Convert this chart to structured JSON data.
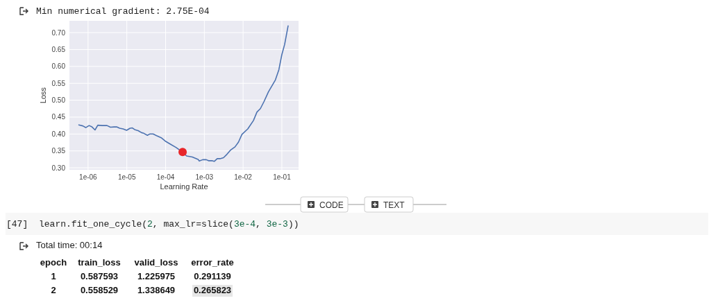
{
  "chart_data": [
    {
      "type": "line",
      "title": "Min numerical gradient: 2.75E-04",
      "xlabel": "Learning Rate",
      "ylabel": "Loss",
      "log": "x",
      "grid": true,
      "xlim": [
        3.3e-07,
        0.27
      ],
      "ylim": [
        0.294,
        0.735
      ],
      "xticks": [
        {
          "value": 1e-06,
          "label": "1e-06"
        },
        {
          "value": 1e-05,
          "label": "1e-05"
        },
        {
          "value": 0.0001,
          "label": "1e-04"
        },
        {
          "value": 0.001,
          "label": "1e-03"
        },
        {
          "value": 0.01,
          "label": "1e-02"
        },
        {
          "value": 0.1,
          "label": "1e-01"
        }
      ],
      "yticks": [
        {
          "value": 0.3,
          "label": "0.30"
        },
        {
          "value": 0.35,
          "label": "0.35"
        },
        {
          "value": 0.4,
          "label": "0.40"
        },
        {
          "value": 0.45,
          "label": "0.45"
        },
        {
          "value": 0.5,
          "label": "0.50"
        },
        {
          "value": 0.55,
          "label": "0.55"
        },
        {
          "value": 0.6,
          "label": "0.60"
        },
        {
          "value": 0.65,
          "label": "0.65"
        },
        {
          "value": 0.7,
          "label": "0.70"
        }
      ],
      "series": [
        {
          "type": "line",
          "color": "#4c72b0",
          "x": [
            5.78e-07,
            7.3e-07,
            8.7e-07,
            1.06e-06,
            1.26e-06,
            1.51e-06,
            1.78e-06,
            2.34e-06,
            3.08e-06,
            3.78e-06,
            4.64e-06,
            5.47e-06,
            6.53e-06,
            8.03e-06,
            9.86e-06,
            1.21e-05,
            1.39e-05,
            1.59e-05,
            1.96e-05,
            2.4e-05,
            2.75e-05,
            3.39e-05,
            3.88e-05,
            4.77e-05,
            5.86e-05,
            7.71e-05,
            0.000101,
            0.000133,
            0.000188,
            0.000247,
            0.000348,
            0.00049,
            0.00069,
            0.00074,
            0.000908,
            0.00112,
            0.00128,
            0.00157,
            0.0018,
            0.00215,
            0.00254,
            0.00312,
            0.00383,
            0.00471,
            0.00619,
            0.0076,
            0.00933,
            0.0132,
            0.0185,
            0.0228,
            0.0279,
            0.0343,
            0.0452,
            0.0681,
            0.0837,
            0.1,
            0.118,
            0.145
          ],
          "values": [
            0.427,
            0.424,
            0.419,
            0.425,
            0.421,
            0.412,
            0.426,
            0.425,
            0.425,
            0.42,
            0.421,
            0.421,
            0.417,
            0.415,
            0.411,
            0.417,
            0.418,
            0.413,
            0.41,
            0.404,
            0.402,
            0.396,
            0.4,
            0.4,
            0.395,
            0.389,
            0.378,
            0.37,
            0.36,
            0.35,
            0.335,
            0.332,
            0.325,
            0.32,
            0.324,
            0.324,
            0.321,
            0.321,
            0.319,
            0.327,
            0.327,
            0.33,
            0.34,
            0.352,
            0.362,
            0.376,
            0.399,
            0.415,
            0.44,
            0.465,
            0.475,
            0.495,
            0.525,
            0.56,
            0.59,
            0.635,
            0.665,
            0.72
          ]
        },
        {
          "type": "scatter",
          "color": "#e8262a",
          "marker": "circle",
          "x": [
            0.000275
          ],
          "values": [
            0.347
          ]
        }
      ]
    },
    {
      "type": "other",
      "annotations": [
        "CODE",
        "TEXT",
        "[47]",
        "learn.fit_one_cycle(2, max_lr=slice(3e-4, 3e-3))",
        "Total time: 00:14",
        "epoch",
        "train_loss",
        "valid_loss",
        "error_rate",
        "1",
        "0.587593",
        "1.225975",
        "0.291139",
        "2",
        "0.558529",
        "1.338649",
        "0.265823"
      ]
    }
  ]
}
